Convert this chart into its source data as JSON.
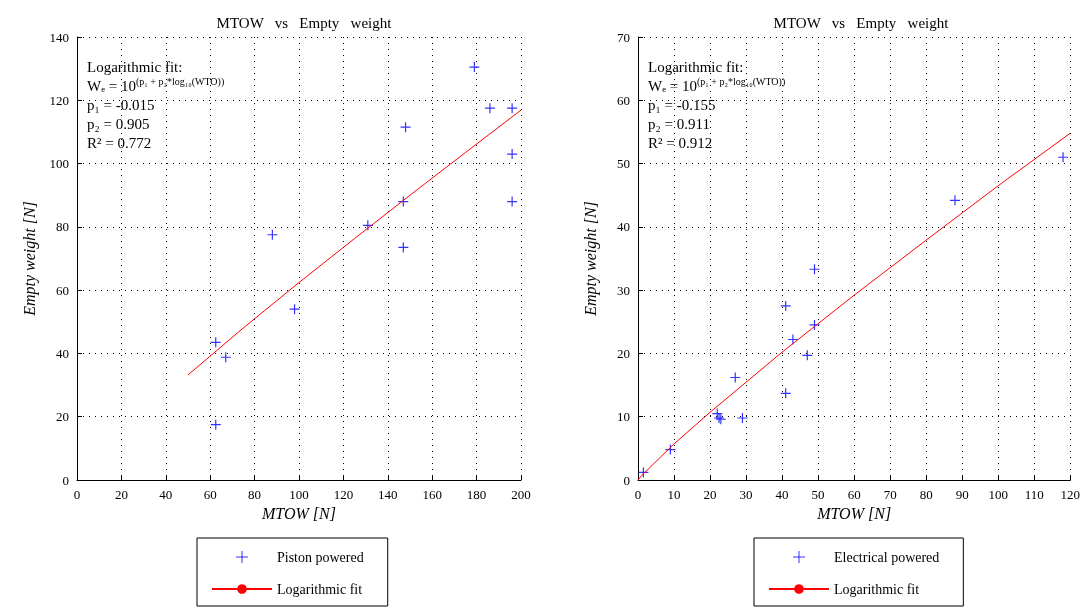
{
  "chart_data": [
    {
      "type": "scatter",
      "title": "MTOW   vs   Empty   weight",
      "xlabel": "MTOW [N]",
      "ylabel": "Empty weight [N]",
      "xlim": [
        0,
        200
      ],
      "xticks": [
        0,
        20,
        40,
        60,
        80,
        100,
        120,
        140,
        160,
        180,
        200
      ],
      "ylim": [
        0,
        140
      ],
      "yticks": [
        0,
        20,
        40,
        60,
        80,
        100,
        120,
        140
      ],
      "grid": true,
      "legend": "bottom",
      "marker": "cross",
      "annotations": [
        "Logarithmic fit:",
        "Wₑ = 10$^{(p₁ + p₂*log₁₀(WTO))}$",
        "p₁ = -0.015",
        "p₂ = 0.905",
        "R² = 0.772"
      ],
      "series": [
        {
          "name": "Piston powered",
          "type": "scatter",
          "color": "#0000ff",
          "x": [
            62.5,
            67,
            62.5,
            88,
            98,
            131,
            147,
            147,
            148,
            179,
            186,
            196,
            196,
            196
          ],
          "values": [
            43.5,
            38.8,
            17.5,
            77.5,
            54,
            80.5,
            88,
            73.5,
            111.5,
            130.5,
            117.5,
            117.5,
            103,
            88
          ]
        },
        {
          "name": "Logarithmic fit",
          "type": "line",
          "color": "#ff0000",
          "marker": "none",
          "x": [
            50,
            75,
            100,
            125,
            150,
            175,
            200
          ],
          "values": [
            33.2,
            48.1,
            62.4,
            76.3,
            90.0,
            103.5,
            116.9
          ]
        }
      ]
    },
    {
      "type": "scatter",
      "title": "MTOW   vs   Empty   weight",
      "xlabel": "MTOW [N]",
      "ylabel": "Empty weight [N]",
      "xlim": [
        0,
        120
      ],
      "xticks": [
        0,
        10,
        20,
        30,
        40,
        50,
        60,
        70,
        80,
        90,
        100,
        110,
        120
      ],
      "ylim": [
        0,
        70
      ],
      "yticks": [
        0,
        10,
        20,
        30,
        40,
        50,
        60,
        70
      ],
      "grid": true,
      "legend": "bottom",
      "marker": "cross",
      "annotations": [
        "Logarithmic fit:",
        "Wₑ = 10$^{(p₁ + p₂*log₁₀(WTO))}$",
        "p₁ = -0.155",
        "p₂ = 0.911",
        "R² = 0.912"
      ],
      "series": [
        {
          "name": "Electrical powered",
          "type": "scatter",
          "color": "#0000ff",
          "x": [
            1.5,
            9,
            22,
            22.5,
            23,
            29,
            27,
            41,
            41,
            43,
            47,
            49,
            49,
            88,
            118
          ],
          "values": [
            1.2,
            4.8,
            10.5,
            9.8,
            9.6,
            9.8,
            16.2,
            27.5,
            13.7,
            22.2,
            19.7,
            33.3,
            24.5,
            44.2,
            51
          ]
        },
        {
          "name": "Logarithmic fit",
          "type": "line",
          "color": "#ff0000",
          "marker": "none",
          "x": [
            0,
            1,
            10,
            20,
            40,
            60,
            80,
            100,
            120
          ],
          "values": [
            0,
            0.7,
            5.7,
            10.7,
            20.2,
            29.2,
            37.9,
            46.5,
            54.8
          ]
        }
      ]
    }
  ]
}
